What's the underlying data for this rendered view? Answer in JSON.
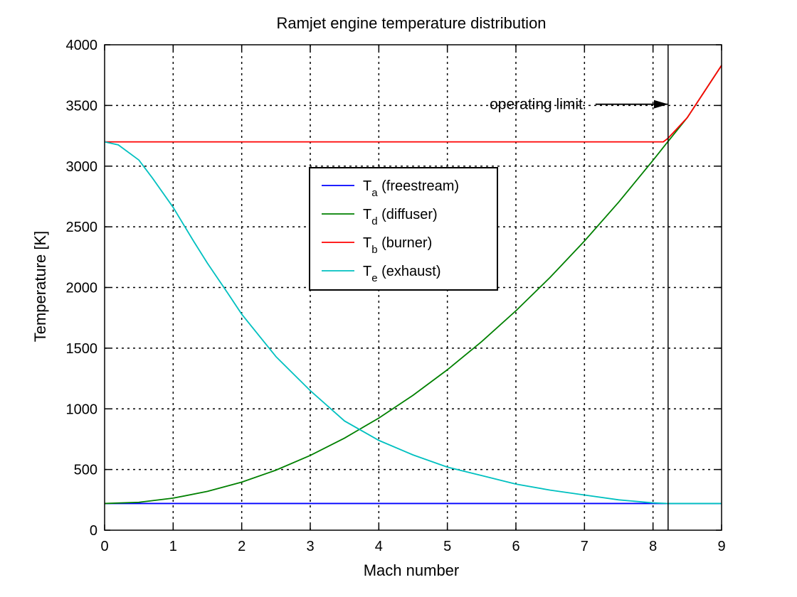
{
  "chart_data": {
    "type": "line",
    "title": "Ramjet engine temperature distribution",
    "xlabel": "Mach number",
    "ylabel": "Temperature [K]",
    "xlim": [
      0,
      9
    ],
    "ylim": [
      0,
      4000
    ],
    "xticks": [
      0,
      1,
      2,
      3,
      4,
      5,
      6,
      7,
      8,
      9
    ],
    "yticks": [
      0,
      500,
      1000,
      1500,
      2000,
      2500,
      3000,
      3500,
      4000
    ],
    "grid": true,
    "legend_position": "center",
    "series": [
      {
        "name": "Ta (freestream)",
        "label_main": "T",
        "label_sub": "a",
        "label_rest": " (freestream)",
        "color": "#0000ff",
        "points": [
          [
            0,
            220
          ],
          [
            9,
            220
          ]
        ]
      },
      {
        "name": "Td (diffuser)",
        "label_main": "T",
        "label_sub": "d",
        "label_rest": " (diffuser)",
        "color": "#008000",
        "points": [
          [
            0,
            220
          ],
          [
            0.5,
            230
          ],
          [
            1,
            264
          ],
          [
            1.5,
            320
          ],
          [
            2,
            396
          ],
          [
            2.5,
            495
          ],
          [
            3,
            616
          ],
          [
            3.5,
            759
          ],
          [
            4,
            924
          ],
          [
            4.5,
            1112
          ],
          [
            5,
            1322
          ],
          [
            5.5,
            1554
          ],
          [
            6,
            1808
          ],
          [
            6.5,
            2084
          ],
          [
            7,
            2383
          ],
          [
            7.5,
            2704
          ],
          [
            8,
            3048
          ],
          [
            8.2,
            3190
          ],
          [
            8.5,
            3400
          ],
          [
            9,
            3830
          ]
        ]
      },
      {
        "name": "Tb (burner)",
        "label_main": "T",
        "label_sub": "b",
        "label_rest": " (burner)",
        "color": "#ff0000",
        "points": [
          [
            0,
            3200
          ],
          [
            8.15,
            3200
          ],
          [
            8.22,
            3230
          ],
          [
            8.5,
            3400
          ],
          [
            9,
            3830
          ]
        ]
      },
      {
        "name": "Te (exhaust)",
        "label_main": "T",
        "label_sub": "e",
        "label_rest": " (exhaust)",
        "color": "#00c0c0",
        "points": [
          [
            0,
            3200
          ],
          [
            0.2,
            3175
          ],
          [
            0.5,
            3050
          ],
          [
            0.7,
            2900
          ],
          [
            1,
            2660
          ],
          [
            1.3,
            2380
          ],
          [
            1.5,
            2200
          ],
          [
            1.8,
            1950
          ],
          [
            2,
            1780
          ],
          [
            2.5,
            1430
          ],
          [
            3,
            1150
          ],
          [
            3.5,
            900
          ],
          [
            4,
            740
          ],
          [
            4.5,
            620
          ],
          [
            5,
            520
          ],
          [
            5.5,
            450
          ],
          [
            6,
            380
          ],
          [
            6.5,
            330
          ],
          [
            7,
            290
          ],
          [
            7.5,
            250
          ],
          [
            8,
            225
          ],
          [
            8.2,
            220
          ],
          [
            9,
            220
          ]
        ]
      }
    ],
    "annotations": [
      {
        "text": "operating limit",
        "arrow_target": [
          8.22,
          3510
        ],
        "vertical_line_x": 8.22
      }
    ]
  }
}
